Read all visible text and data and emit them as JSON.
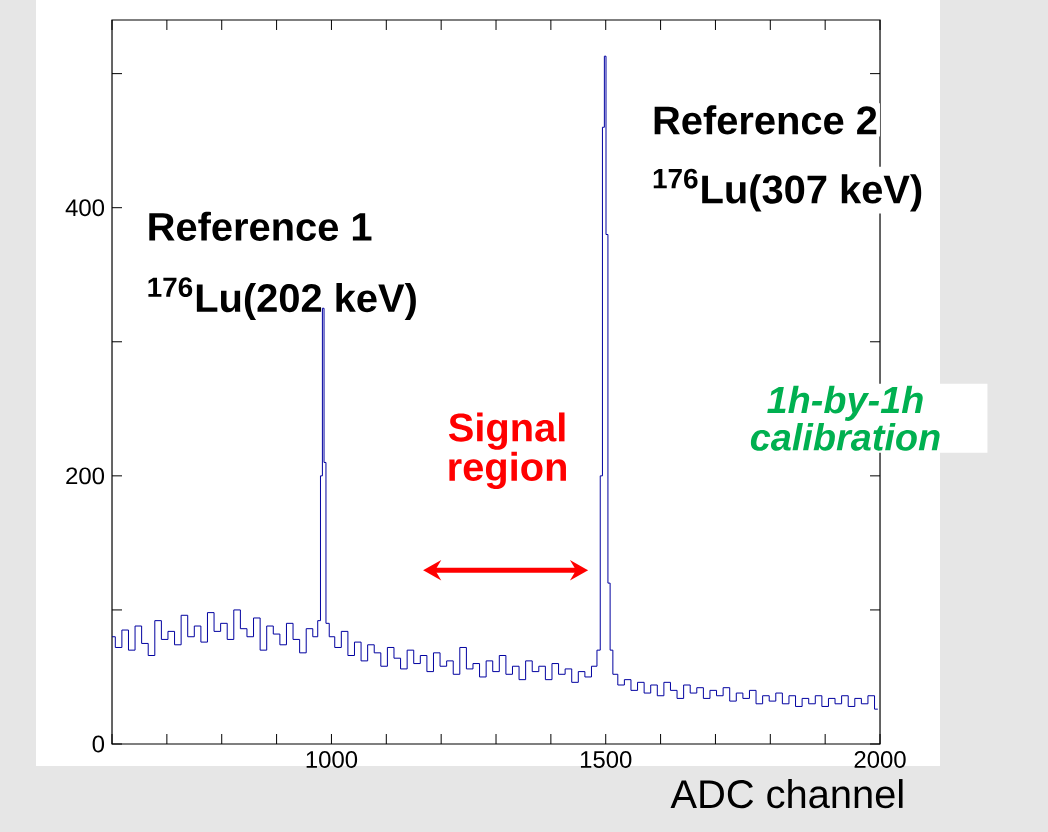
{
  "chart_data": {
    "type": "step",
    "xlabel": "ADC channel",
    "annotations": [
      "Reference 1",
      "$^{176}$Lu(202 keV)",
      "Reference 2",
      "$^{176}$Lu(307 keV)",
      "1h-by-1h calibration",
      "Signal region"
    ],
    "xlim": [
      600,
      2000
    ],
    "ylim": [
      0,
      540
    ],
    "xticks": [
      {
        "value": 600,
        "label": null
      },
      {
        "value": 700,
        "label": null
      },
      {
        "value": 800,
        "label": null
      },
      {
        "value": 900,
        "label": null
      },
      1000,
      {
        "value": 1100,
        "label": null
      },
      {
        "value": 1200,
        "label": null
      },
      {
        "value": 1300,
        "label": null
      },
      {
        "value": 1400,
        "label": null
      },
      1500,
      {
        "value": 1600,
        "label": null
      },
      {
        "value": 1700,
        "label": null
      },
      {
        "value": 1800,
        "label": null
      },
      {
        "value": 1900,
        "label": null
      },
      2000
    ],
    "yticks": [
      0,
      {
        "value": 100,
        "label": null
      },
      200,
      {
        "value": 300,
        "label": null
      },
      400,
      {
        "value": 500,
        "label": null
      }
    ],
    "grid": false,
    "series": [
      {
        "color": "#0000a0",
        "x": [
          600,
          612,
          624,
          636,
          648,
          660,
          672,
          684,
          696,
          708,
          720,
          732,
          744,
          756,
          768,
          780,
          792,
          804,
          816,
          828,
          840,
          852,
          864,
          876,
          888,
          900,
          912,
          924,
          936,
          948,
          960,
          972,
          978,
          982,
          985,
          988,
          992,
          1000,
          1012,
          1024,
          1036,
          1048,
          1060,
          1072,
          1084,
          1096,
          1108,
          1120,
          1132,
          1144,
          1156,
          1168,
          1180,
          1192,
          1204,
          1216,
          1228,
          1240,
          1252,
          1264,
          1276,
          1288,
          1300,
          1312,
          1324,
          1336,
          1348,
          1360,
          1372,
          1384,
          1396,
          1408,
          1420,
          1432,
          1444,
          1456,
          1468,
          1480,
          1488,
          1492,
          1496,
          1499,
          1502,
          1506,
          1510,
          1516,
          1528,
          1540,
          1552,
          1564,
          1576,
          1588,
          1600,
          1612,
          1624,
          1636,
          1648,
          1660,
          1672,
          1684,
          1696,
          1708,
          1720,
          1732,
          1744,
          1756,
          1768,
          1780,
          1792,
          1804,
          1816,
          1828,
          1840,
          1852,
          1864,
          1876,
          1888,
          1900,
          1912,
          1924,
          1936,
          1948,
          1960,
          1972,
          1984,
          1996
        ],
        "values": [
          80,
          72,
          85,
          70,
          88,
          75,
          66,
          92,
          78,
          84,
          74,
          96,
          80,
          88,
          76,
          98,
          84,
          90,
          78,
          100,
          86,
          80,
          94,
          70,
          88,
          82,
          74,
          90,
          78,
          68,
          86,
          80,
          92,
          200,
          325,
          210,
          90,
          80,
          72,
          84,
          66,
          76,
          62,
          74,
          68,
          58,
          72,
          64,
          56,
          70,
          60,
          66,
          54,
          68,
          58,
          62,
          52,
          72,
          56,
          60,
          50,
          62,
          54,
          66,
          52,
          58,
          48,
          62,
          54,
          58,
          48,
          60,
          52,
          56,
          46,
          54,
          50,
          58,
          70,
          200,
          460,
          513,
          380,
          120,
          70,
          52,
          44,
          48,
          40,
          46,
          38,
          44,
          36,
          46,
          40,
          34,
          44,
          38,
          42,
          34,
          40,
          36,
          42,
          32,
          38,
          34,
          40,
          30,
          36,
          32,
          38,
          30,
          36,
          28,
          34,
          30,
          36,
          28,
          34,
          30,
          36,
          28,
          34,
          30,
          36,
          26
        ]
      }
    ]
  }
}
